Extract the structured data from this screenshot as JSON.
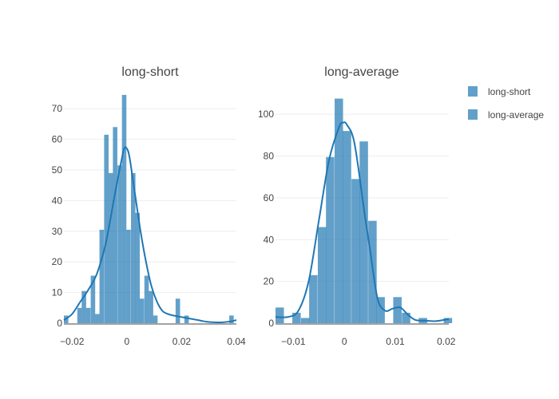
{
  "colors": {
    "series": "#1f77b4",
    "text": "#444444",
    "grid": "#eeeeee",
    "background": "#ffffff"
  },
  "legend": {
    "placement": "top-right",
    "items": [
      {
        "label": "long-short",
        "icon": "square-swatch"
      },
      {
        "label": "long-average",
        "icon": "square-swatch"
      }
    ]
  },
  "chart_data": [
    {
      "type": "bar",
      "subtype": "histogram-with-kde",
      "title": "long-short",
      "series_name": "long-short",
      "xlim": [
        -0.023,
        0.04
      ],
      "ylim": [
        0,
        75
      ],
      "xticks": [
        -0.02,
        0,
        0.02,
        0.04
      ],
      "xtick_labels": [
        "−0.02",
        "0",
        "0.02",
        "0.04"
      ],
      "yticks": [
        0,
        10,
        20,
        30,
        40,
        50,
        60,
        70
      ],
      "ytick_labels": [
        "0",
        "10",
        "20",
        "30",
        "40",
        "50",
        "60",
        "70"
      ],
      "grid": true,
      "bin_width": 0.00163,
      "bins": [
        {
          "x0": -0.023,
          "count": 2.5
        },
        {
          "x0": -0.0214,
          "count": 0
        },
        {
          "x0": -0.0197,
          "count": 0
        },
        {
          "x0": -0.0181,
          "count": 5
        },
        {
          "x0": -0.0165,
          "count": 10.5
        },
        {
          "x0": -0.0149,
          "count": 5
        },
        {
          "x0": -0.0132,
          "count": 15.5
        },
        {
          "x0": -0.0116,
          "count": 3
        },
        {
          "x0": -0.01,
          "count": 30.5
        },
        {
          "x0": -0.0083,
          "count": 61.5
        },
        {
          "x0": -0.0067,
          "count": 49
        },
        {
          "x0": -0.0051,
          "count": 64
        },
        {
          "x0": -0.0034,
          "count": 51.5
        },
        {
          "x0": -0.0018,
          "count": 74.5
        },
        {
          "x0": -0.0002,
          "count": 30.5
        },
        {
          "x0": 0.0015,
          "count": 49
        },
        {
          "x0": 0.0031,
          "count": 36
        },
        {
          "x0": 0.0047,
          "count": 8
        },
        {
          "x0": 0.0064,
          "count": 15.5
        },
        {
          "x0": 0.008,
          "count": 10.5
        },
        {
          "x0": 0.0096,
          "count": 2.5
        },
        {
          "x0": 0.0112,
          "count": 0
        },
        {
          "x0": 0.0129,
          "count": 0
        },
        {
          "x0": 0.0145,
          "count": 0
        },
        {
          "x0": 0.0161,
          "count": 0
        },
        {
          "x0": 0.0178,
          "count": 8
        },
        {
          "x0": 0.0194,
          "count": 0
        },
        {
          "x0": 0.021,
          "count": 2.5
        },
        {
          "x0": 0.0227,
          "count": 0
        },
        {
          "x0": 0.0243,
          "count": 0
        },
        {
          "x0": 0.0259,
          "count": 0
        },
        {
          "x0": 0.0276,
          "count": 0
        },
        {
          "x0": 0.0292,
          "count": 0
        },
        {
          "x0": 0.0308,
          "count": 0
        },
        {
          "x0": 0.0325,
          "count": 0
        },
        {
          "x0": 0.0341,
          "count": 0
        },
        {
          "x0": 0.0357,
          "count": 0
        },
        {
          "x0": 0.0374,
          "count": 2.5
        }
      ],
      "kde": {
        "x": [
          -0.023,
          -0.02,
          -0.017,
          -0.014,
          -0.011,
          -0.008,
          -0.006,
          -0.004,
          -0.002,
          -0.001,
          0.0,
          0.001,
          0.003,
          0.005,
          0.007,
          0.009,
          0.011,
          0.013,
          0.015,
          0.017,
          0.02,
          0.023,
          0.026,
          0.029,
          0.032,
          0.035,
          0.038,
          0.04
        ],
        "y": [
          1,
          3,
          7,
          11,
          16,
          25,
          34,
          44,
          53,
          57,
          57,
          54,
          42,
          30,
          20,
          12,
          7,
          4,
          3,
          2.5,
          2,
          1.5,
          1,
          0.5,
          0.3,
          0.3,
          0.6,
          1
        ]
      }
    },
    {
      "type": "bar",
      "subtype": "histogram-with-kde",
      "title": "long-average",
      "series_name": "long-average",
      "xlim": [
        -0.0135,
        0.0205
      ],
      "ylim": [
        0,
        110
      ],
      "xticks": [
        -0.01,
        0,
        0.01,
        0.02
      ],
      "xtick_labels": [
        "−0.01",
        "0",
        "0.01",
        "0.02"
      ],
      "yticks": [
        0,
        20,
        40,
        60,
        80,
        100
      ],
      "ytick_labels": [
        "0",
        "20",
        "40",
        "60",
        "80",
        "100"
      ],
      "grid": true,
      "bin_width": 0.00165,
      "bins": [
        {
          "x0": -0.0135,
          "count": 7.5
        },
        {
          "x0": -0.0118,
          "count": 0
        },
        {
          "x0": -0.0102,
          "count": 5
        },
        {
          "x0": -0.0085,
          "count": 2.5
        },
        {
          "x0": -0.0069,
          "count": 23
        },
        {
          "x0": -0.0052,
          "count": 46
        },
        {
          "x0": -0.0036,
          "count": 79.5
        },
        {
          "x0": -0.0019,
          "count": 107.5
        },
        {
          "x0": -0.0003,
          "count": 92
        },
        {
          "x0": 0.0014,
          "count": 69
        },
        {
          "x0": 0.003,
          "count": 87
        },
        {
          "x0": 0.0047,
          "count": 49
        },
        {
          "x0": 0.0063,
          "count": 12.5
        },
        {
          "x0": 0.008,
          "count": 0
        },
        {
          "x0": 0.0096,
          "count": 12.5
        },
        {
          "x0": 0.0113,
          "count": 5
        },
        {
          "x0": 0.0129,
          "count": 0
        },
        {
          "x0": 0.0146,
          "count": 2.5
        },
        {
          "x0": 0.0162,
          "count": 0
        },
        {
          "x0": 0.0179,
          "count": 0
        },
        {
          "x0": 0.0195,
          "count": 2.5
        }
      ],
      "kde": {
        "x": [
          -0.0135,
          -0.011,
          -0.009,
          -0.007,
          -0.005,
          -0.003,
          -0.001,
          -0.0002,
          0.0005,
          0.002,
          0.004,
          0.005,
          0.0065,
          0.008,
          0.0095,
          0.011,
          0.0125,
          0.014,
          0.016,
          0.018,
          0.0205
        ],
        "y": [
          3,
          3,
          6,
          20,
          49,
          78,
          94,
          96,
          95,
          86,
          52,
          36,
          12,
          6,
          7,
          7.5,
          4,
          1.5,
          1.2,
          1,
          2
        ]
      }
    }
  ]
}
